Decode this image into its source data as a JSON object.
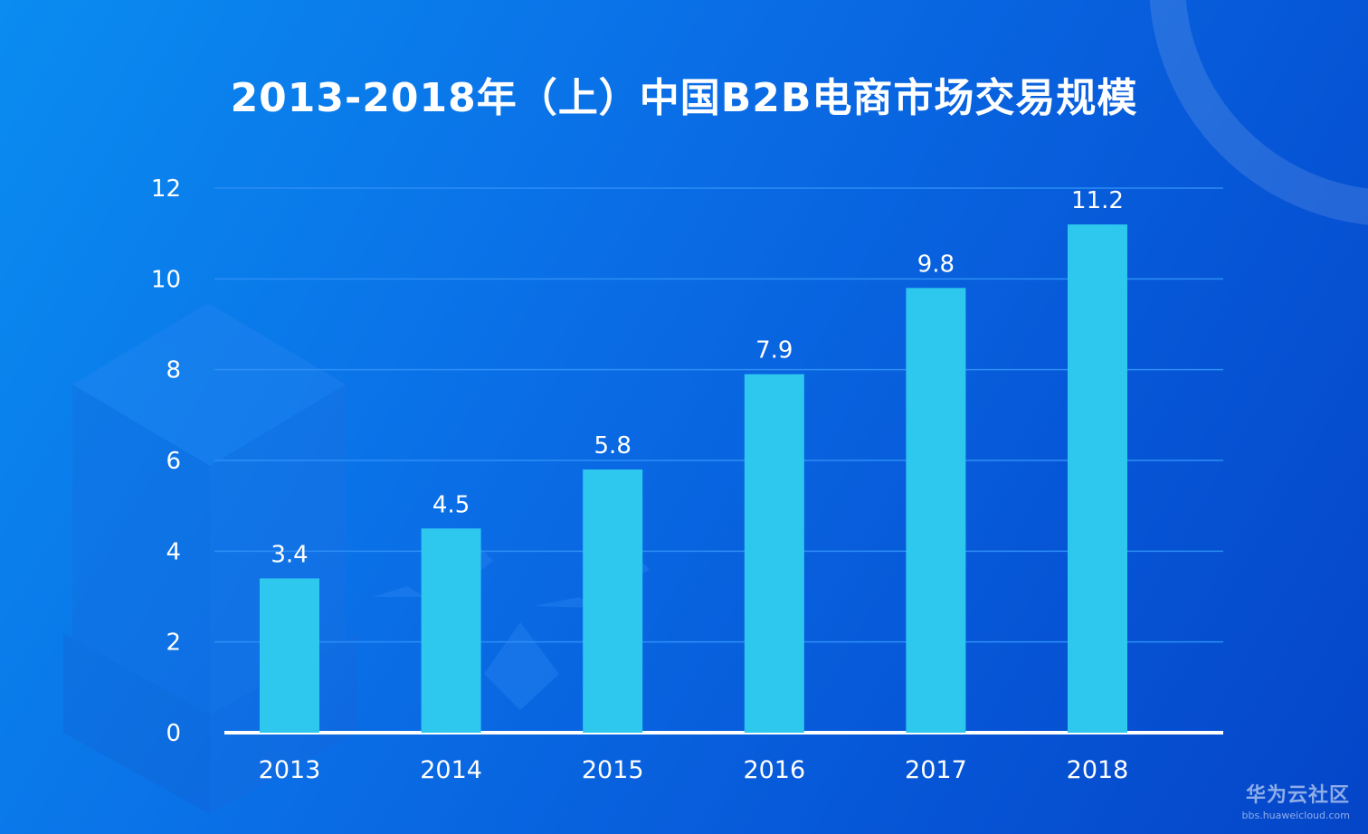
{
  "title": "2013-2018年（上）中国B2B电商市场交易规模",
  "colors": {
    "bar": "#2ec8ef",
    "grid": "#2d8ef5",
    "axis": "#ffffff",
    "text": "#ffffff"
  },
  "chart_data": {
    "type": "bar",
    "title": "2013-2018年（上）中国B2B电商市场交易规模",
    "categories": [
      "2013",
      "2014",
      "2015",
      "2016",
      "2017",
      "2018"
    ],
    "values": [
      3.4,
      4.5,
      5.8,
      7.9,
      9.8,
      11.2
    ],
    "value_labels": [
      "3.4",
      "4.5",
      "5.8",
      "7.9",
      "9.8",
      "11.2"
    ],
    "yticks": [
      "0",
      "2",
      "4",
      "6",
      "8",
      "10",
      "12"
    ],
    "ylim": [
      0,
      12
    ],
    "xlabel": "",
    "ylabel": "",
    "grid": true
  },
  "watermark": {
    "main": "华为云社区",
    "url": "bbs.huaweicloud.com"
  }
}
